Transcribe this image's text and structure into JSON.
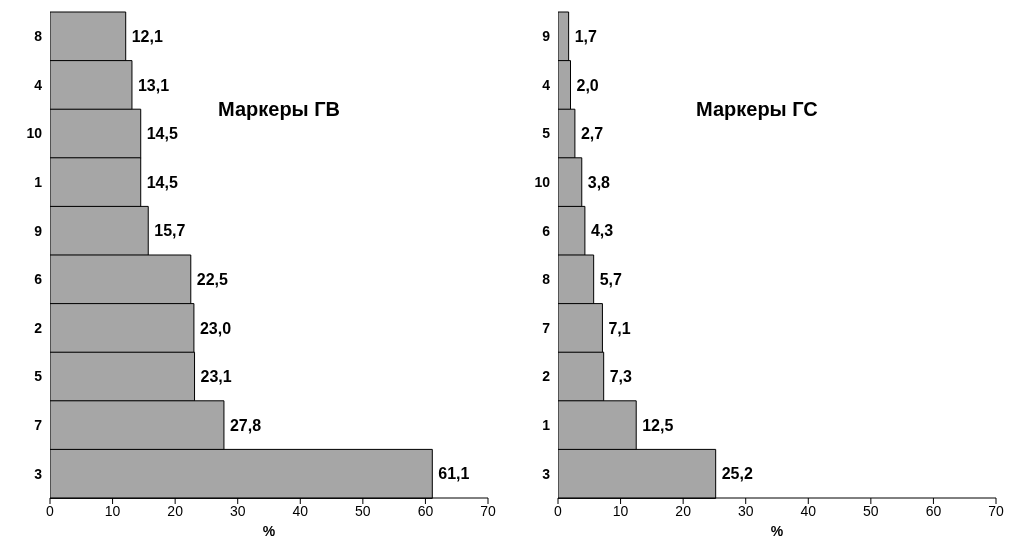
{
  "chart_data": [
    {
      "type": "bar",
      "orientation": "horizontal",
      "title": "Маркеры ГВ",
      "xlabel": "%",
      "categories": [
        "8",
        "4",
        "10",
        "1",
        "9",
        "6",
        "2",
        "5",
        "7",
        "3"
      ],
      "values": [
        12.1,
        13.1,
        14.5,
        14.5,
        15.7,
        22.5,
        23.0,
        23.1,
        27.8,
        61.1
      ],
      "value_labels": [
        "12,1",
        "13,1",
        "14,5",
        "14,5",
        "15,7",
        "22,5",
        "23,0",
        "23,1",
        "27,8",
        "61,1"
      ],
      "color": "#a6a6a6",
      "xlim": [
        0,
        70
      ],
      "xticks": [
        0,
        10,
        20,
        30,
        40,
        50,
        60,
        70
      ],
      "grid": false,
      "legend": false
    },
    {
      "type": "bar",
      "orientation": "horizontal",
      "title": "Маркеры ГС",
      "xlabel": "%",
      "categories": [
        "9",
        "4",
        "5",
        "10",
        "6",
        "8",
        "7",
        "2",
        "1",
        "3"
      ],
      "values": [
        1.7,
        2.0,
        2.7,
        3.8,
        4.3,
        5.7,
        7.1,
        7.3,
        12.5,
        25.2
      ],
      "value_labels": [
        "1,7",
        "2,0",
        "2,7",
        "3,8",
        "4,3",
        "5,7",
        "7,1",
        "7,3",
        "12,5",
        "25,2"
      ],
      "color": "#a6a6a6",
      "xlim": [
        0,
        70
      ],
      "xticks": [
        0,
        10,
        20,
        30,
        40,
        50,
        60,
        70
      ],
      "grid": false,
      "legend": false
    }
  ]
}
